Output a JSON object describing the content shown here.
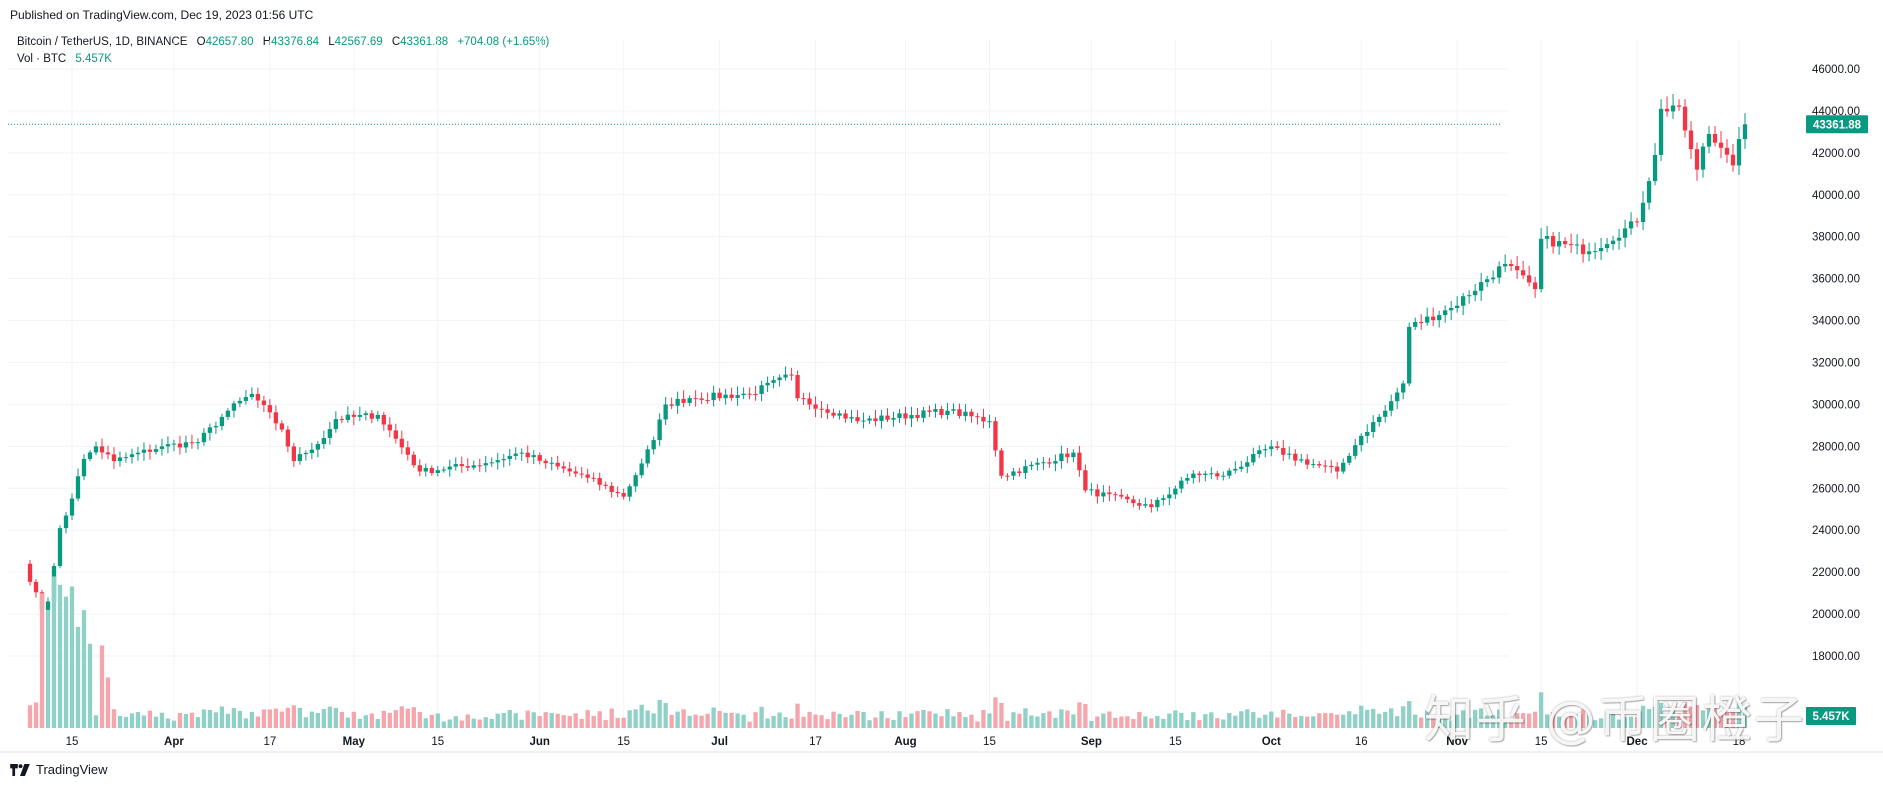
{
  "header": {
    "published": "Published on TradingView.com, Dec 19, 2023 01:56 UTC",
    "symbol": "Bitcoin / TetherUS, 1D, BINANCE",
    "open_label": "O",
    "open": "42657.80",
    "high_label": "H",
    "high": "43376.84",
    "low_label": "L",
    "low": "42567.69",
    "close_label": "C",
    "close": "43361.88",
    "change": "+704.08 (+1.65%)",
    "vol_label": "Vol · BTC",
    "vol_value": "5.457K"
  },
  "footer": {
    "brand": "TradingView"
  },
  "watermark": "知乎 @币圈橙子",
  "colors": {
    "up": "#089981",
    "down": "#f23645",
    "up_vol": "#8fd1c6",
    "down_vol": "#f5a6ad",
    "grid": "#f0f3fa",
    "text": "#131722"
  },
  "chart_data": {
    "type": "candlestick",
    "title": "Bitcoin / TetherUS, 1D, BINANCE",
    "ylim": [
      17000,
      47000
    ],
    "y_ticks": [
      "18000.00",
      "20000.00",
      "22000.00",
      "24000.00",
      "26000.00",
      "28000.00",
      "30000.00",
      "32000.00",
      "34000.00",
      "36000.00",
      "38000.00",
      "40000.00",
      "42000.00",
      "44000.00",
      "46000.00"
    ],
    "x_ticks": [
      {
        "label": "15",
        "date": "2023-03-15"
      },
      {
        "label": "Apr",
        "date": "2023-04-01"
      },
      {
        "label": "17",
        "date": "2023-04-17"
      },
      {
        "label": "May",
        "date": "2023-05-01"
      },
      {
        "label": "15",
        "date": "2023-05-15"
      },
      {
        "label": "Jun",
        "date": "2023-06-01"
      },
      {
        "label": "15",
        "date": "2023-06-15"
      },
      {
        "label": "Jul",
        "date": "2023-07-01"
      },
      {
        "label": "17",
        "date": "2023-07-17"
      },
      {
        "label": "Aug",
        "date": "2023-08-01"
      },
      {
        "label": "15",
        "date": "2023-08-15"
      },
      {
        "label": "Sep",
        "date": "2023-09-01"
      },
      {
        "label": "15",
        "date": "2023-09-15"
      },
      {
        "label": "Oct",
        "date": "2023-10-01"
      },
      {
        "label": "16",
        "date": "2023-10-16"
      },
      {
        "label": "Nov",
        "date": "2023-11-01"
      },
      {
        "label": "15",
        "date": "2023-11-15"
      },
      {
        "label": "Dec",
        "date": "2023-12-01"
      },
      {
        "label": "18",
        "date": "2023-12-18"
      }
    ],
    "last_price": "43361.88",
    "last_volume": "5.457K",
    "volume_unit": "BTC",
    "anchors": [
      {
        "date": "2023-03-07",
        "close": 22400
      },
      {
        "date": "2023-03-10",
        "close": 20200
      },
      {
        "date": "2023-03-11",
        "close": 20600
      },
      {
        "date": "2023-03-13",
        "close": 24100
      },
      {
        "date": "2023-03-14",
        "close": 24700
      },
      {
        "date": "2023-03-17",
        "close": 27400
      },
      {
        "date": "2023-03-19",
        "close": 28000
      },
      {
        "date": "2023-03-22",
        "close": 27300
      },
      {
        "date": "2023-03-30",
        "close": 28000
      },
      {
        "date": "2023-04-05",
        "close": 28200
      },
      {
        "date": "2023-04-10",
        "close": 29700
      },
      {
        "date": "2023-04-14",
        "close": 30500
      },
      {
        "date": "2023-04-19",
        "close": 28800
      },
      {
        "date": "2023-04-21",
        "close": 27300
      },
      {
        "date": "2023-04-26",
        "close": 28400
      },
      {
        "date": "2023-04-28",
        "close": 29300
      },
      {
        "date": "2023-05-05",
        "close": 29500
      },
      {
        "date": "2023-05-10",
        "close": 27600
      },
      {
        "date": "2023-05-12",
        "close": 26800
      },
      {
        "date": "2023-05-23",
        "close": 27200
      },
      {
        "date": "2023-05-29",
        "close": 27700
      },
      {
        "date": "2023-06-02",
        "close": 27200
      },
      {
        "date": "2023-06-09",
        "close": 26500
      },
      {
        "date": "2023-06-15",
        "close": 25600
      },
      {
        "date": "2023-06-20",
        "close": 28300
      },
      {
        "date": "2023-06-22",
        "close": 30000
      },
      {
        "date": "2023-06-26",
        "close": 30300
      },
      {
        "date": "2023-07-06",
        "close": 30500
      },
      {
        "date": "2023-07-13",
        "close": 31400
      },
      {
        "date": "2023-07-14",
        "close": 30300
      },
      {
        "date": "2023-07-24",
        "close": 29200
      },
      {
        "date": "2023-08-08",
        "close": 29700
      },
      {
        "date": "2023-08-15",
        "close": 29200
      },
      {
        "date": "2023-08-17",
        "close": 26600
      },
      {
        "date": "2023-08-29",
        "close": 27700
      },
      {
        "date": "2023-08-31",
        "close": 25900
      },
      {
        "date": "2023-09-11",
        "close": 25100
      },
      {
        "date": "2023-09-18",
        "close": 26700
      },
      {
        "date": "2023-09-23",
        "close": 26600
      },
      {
        "date": "2023-10-01",
        "close": 28000
      },
      {
        "date": "2023-10-03",
        "close": 27600
      },
      {
        "date": "2023-10-12",
        "close": 26800
      },
      {
        "date": "2023-10-16",
        "close": 28500
      },
      {
        "date": "2023-10-20",
        "close": 29700
      },
      {
        "date": "2023-10-23",
        "close": 31000
      },
      {
        "date": "2023-10-24",
        "close": 33700
      },
      {
        "date": "2023-10-31",
        "close": 34600
      },
      {
        "date": "2023-11-09",
        "close": 36700
      },
      {
        "date": "2023-11-14",
        "close": 35500
      },
      {
        "date": "2023-11-15",
        "close": 37900
      },
      {
        "date": "2023-11-23",
        "close": 37300
      },
      {
        "date": "2023-12-01",
        "close": 38700
      },
      {
        "date": "2023-12-04",
        "close": 41900
      },
      {
        "date": "2023-12-05",
        "close": 44100
      },
      {
        "date": "2023-12-08",
        "close": 44200
      },
      {
        "date": "2023-12-11",
        "close": 41200
      },
      {
        "date": "2023-12-13",
        "close": 42900
      },
      {
        "date": "2023-12-17",
        "close": 41400
      },
      {
        "date": "2023-12-18",
        "close": 42658
      },
      {
        "date": "2023-12-19",
        "close": 43362
      }
    ],
    "volume_spikes": [
      {
        "date": "2023-03-10",
        "value": 8
      },
      {
        "date": "2023-03-11",
        "value": 7
      },
      {
        "date": "2023-03-12",
        "value": 9
      },
      {
        "date": "2023-03-13",
        "value": 8.5
      },
      {
        "date": "2023-03-14",
        "value": 7.8
      },
      {
        "date": "2023-03-15",
        "value": 8.4
      },
      {
        "date": "2023-03-16",
        "value": 6
      },
      {
        "date": "2023-03-17",
        "value": 7
      },
      {
        "date": "2023-03-18",
        "value": 5
      },
      {
        "date": "2023-03-20",
        "value": 4.9
      },
      {
        "date": "2023-03-21",
        "value": 3
      },
      {
        "date": "2023-10-24",
        "value": 1.6
      },
      {
        "date": "2023-12-05",
        "value": 1.5
      }
    ]
  }
}
